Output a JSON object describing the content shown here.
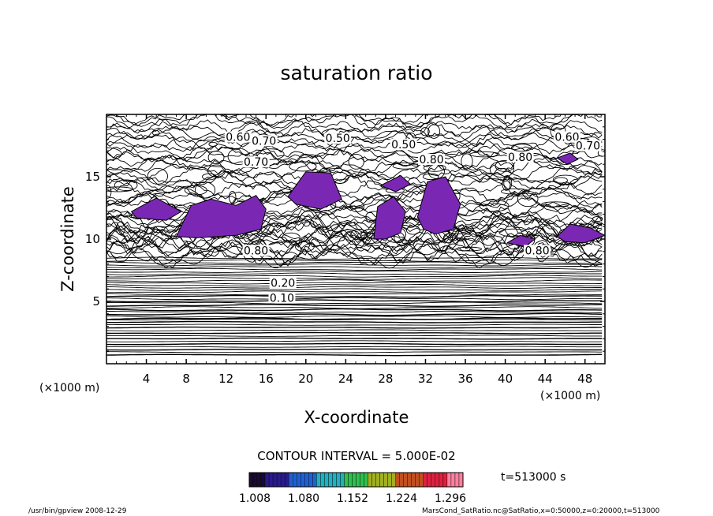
{
  "chart_data": {
    "type": "contour",
    "title": "saturation ratio",
    "xlabel": "X-coordinate",
    "ylabel": "Z-coordinate",
    "x_unit": "(×1000 m)",
    "y_unit": "(×1000 m)",
    "xlim": [
      0,
      50
    ],
    "ylim": [
      0,
      20
    ],
    "x_ticks": [
      4,
      8,
      12,
      16,
      20,
      24,
      28,
      32,
      36,
      40,
      44,
      48
    ],
    "y_ticks": [
      5,
      10,
      15
    ],
    "contour_interval_text": "CONTOUR INTERVAL = 5.000E-02",
    "time_text": "t=513000 s",
    "colorbar": {
      "tick_labels": [
        "1.008",
        "1.080",
        "1.152",
        "1.224",
        "1.296"
      ],
      "colors": [
        "#1a0a2e",
        "#2a1a8a",
        "#2060d0",
        "#20b0c0",
        "#30c050",
        "#a0b020",
        "#c05020",
        "#e02040",
        "#ff80a0"
      ]
    },
    "contour_labels": [
      {
        "text": "0.60",
        "x": 13.2,
        "z": 18.0
      },
      {
        "text": "0.70",
        "x": 15.8,
        "z": 17.7
      },
      {
        "text": "0.50",
        "x": 23.2,
        "z": 17.9
      },
      {
        "text": "0.50",
        "x": 29.8,
        "z": 17.4
      },
      {
        "text": "0.60",
        "x": 46.2,
        "z": 18.0
      },
      {
        "text": "0.70",
        "x": 48.3,
        "z": 17.3
      },
      {
        "text": "0.70",
        "x": 15.0,
        "z": 16.0
      },
      {
        "text": "0.80",
        "x": 32.6,
        "z": 16.2
      },
      {
        "text": "0.80",
        "x": 41.5,
        "z": 16.4
      },
      {
        "text": "0.80",
        "x": 15.0,
        "z": 8.9
      },
      {
        "text": "0.80",
        "x": 43.2,
        "z": 8.9
      },
      {
        "text": "0.20",
        "x": 17.7,
        "z": 6.3
      },
      {
        "text": "0.10",
        "x": 17.6,
        "z": 5.1
      }
    ],
    "purple_regions_color": "#7a28b4"
  },
  "footer": {
    "left": "/usr/bin/gpview   2008-12-29",
    "right": "MarsCond_SatRatio.nc@SatRatio,x=0:50000,z=0:20000,t=513000"
  }
}
